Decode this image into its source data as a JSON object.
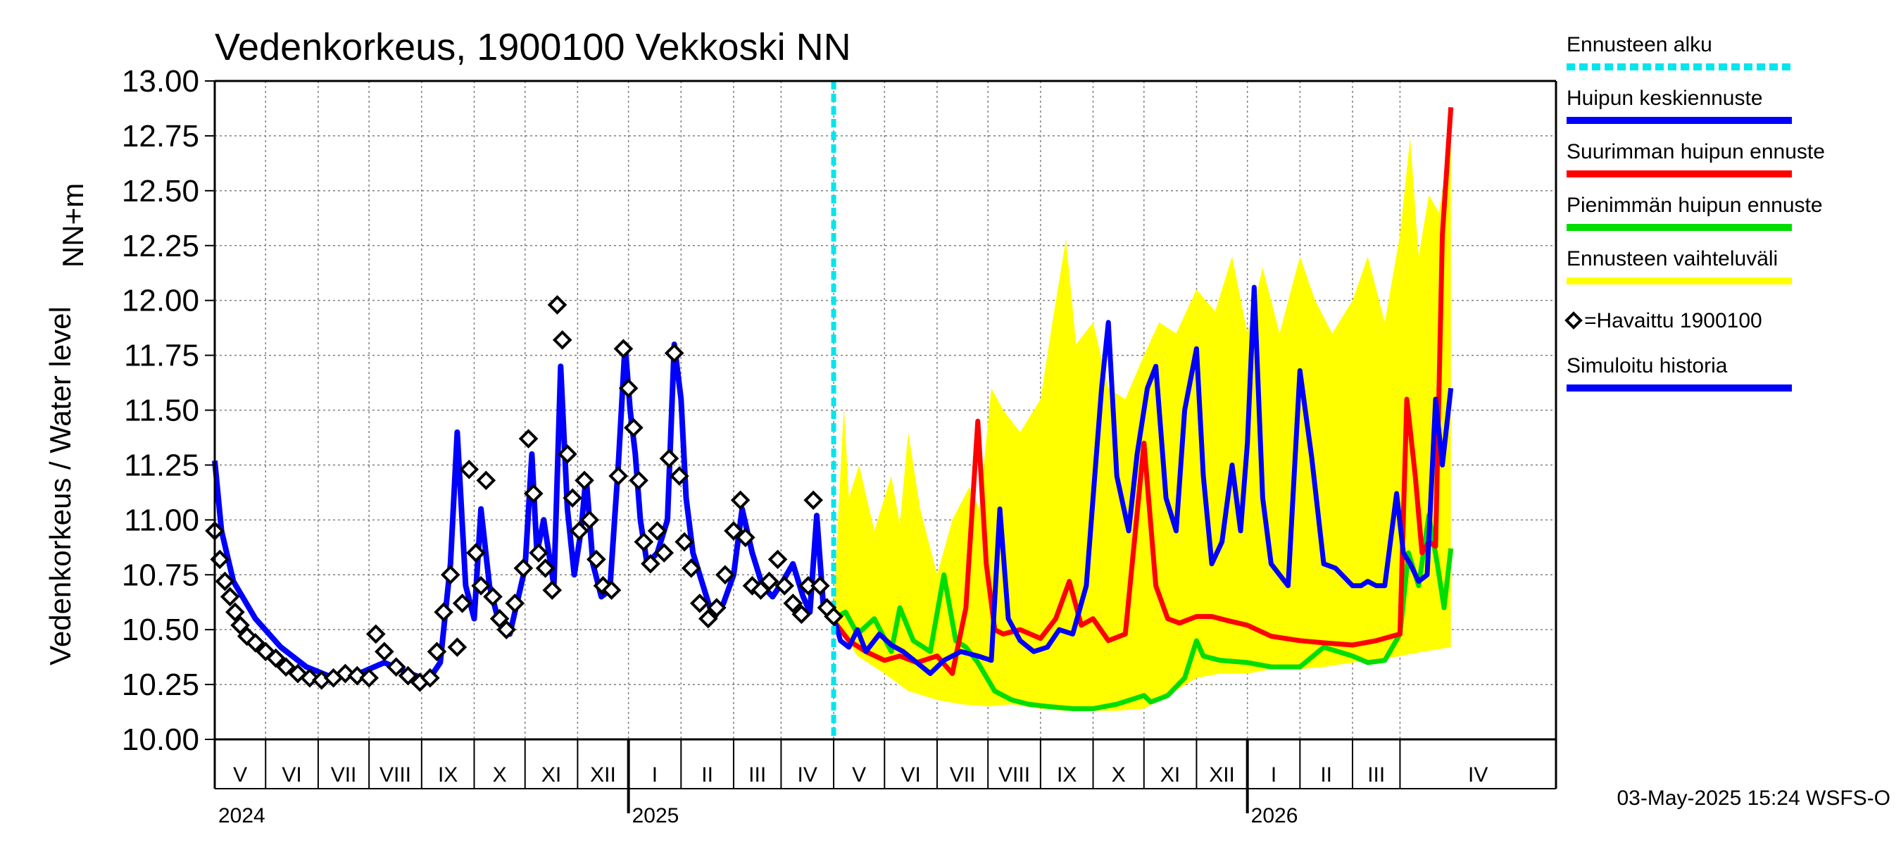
{
  "colors": {
    "forecast_start": "#00e5ee",
    "mean_forecast": "#0000ff",
    "max_forecast": "#ff0000",
    "min_forecast": "#00dd00",
    "range": "#ffff00",
    "observed": "#000000",
    "simulated": "#0000ff",
    "grid": "#7f7f7f"
  },
  "footer": "03-May-2025 15:24 WSFS-O",
  "chart_data": {
    "type": "line",
    "title": "Vedenkorkeus, 1900100 Vekkoski NN",
    "ylabel_top": "NN+m",
    "ylabel": "Vedenkorkeus / Water level",
    "ylim": [
      10.0,
      13.0
    ],
    "yticks": [
      "10.00",
      "10.25",
      "10.50",
      "10.75",
      "11.00",
      "11.25",
      "11.50",
      "11.75",
      "12.00",
      "12.25",
      "12.50",
      "12.75",
      "13.00"
    ],
    "xlim": [
      "2024-04-01",
      "2026-05-31"
    ],
    "grid": true,
    "legend_position": "right",
    "legend": [
      {
        "key": "forecast_start",
        "label": "Ennusteen alku"
      },
      {
        "key": "mean_forecast",
        "label": "Huipun keskiennuste"
      },
      {
        "key": "max_forecast",
        "label": "Suurimman huipun ennuste"
      },
      {
        "key": "min_forecast",
        "label": "Pienimmän huipun ennuste"
      },
      {
        "key": "range",
        "label": "Ennusteen vaihteluväli"
      },
      {
        "key": "observed",
        "label": "=Havaittu 1900100"
      },
      {
        "key": "simulated",
        "label": "Simuloitu historia"
      }
    ],
    "months": [
      {
        "label": "V",
        "start": "2024-04-01"
      },
      {
        "label": "VI",
        "start": "2024-05-01"
      },
      {
        "label": "VII",
        "start": "2024-06-01"
      },
      {
        "label": "VIII",
        "start": "2024-07-01"
      },
      {
        "label": "IX",
        "start": "2024-08-01"
      },
      {
        "label": "X",
        "start": "2024-09-01"
      },
      {
        "label": "XI",
        "start": "2024-10-01"
      },
      {
        "label": "XII",
        "start": "2024-11-01"
      },
      {
        "label": "I",
        "start": "2024-12-01"
      },
      {
        "label": "II",
        "start": "2025-01-01"
      },
      {
        "label": "III",
        "start": "2025-02-01"
      },
      {
        "label": "IV",
        "start": "2025-03-01"
      },
      {
        "label": "V",
        "start": "2025-04-01"
      },
      {
        "label": "VI",
        "start": "2025-05-01"
      },
      {
        "label": "VII",
        "start": "2025-06-01"
      },
      {
        "label": "VIII",
        "start": "2025-07-01"
      },
      {
        "label": "IX",
        "start": "2025-08-01"
      },
      {
        "label": "X",
        "start": "2025-09-01"
      },
      {
        "label": "XI",
        "start": "2025-10-01"
      },
      {
        "label": "XII",
        "start": "2025-11-01"
      },
      {
        "label": "I",
        "start": "2025-12-01"
      },
      {
        "label": "II",
        "start": "2026-01-01"
      },
      {
        "label": "III",
        "start": "2026-02-01"
      },
      {
        "label": "IV",
        "start": "2026-03-01"
      }
    ],
    "years": [
      {
        "label": "2024",
        "date": "2024-04-01"
      },
      {
        "label": "2025",
        "date": "2024-12-01"
      },
      {
        "label": "2026",
        "date": "2025-12-01"
      }
    ],
    "forecast_start": "2025-04-01",
    "series": [
      {
        "key": "simulated",
        "x": [
          "2024-04-01",
          "2024-04-05",
          "2024-04-12",
          "2024-04-25",
          "2024-05-10",
          "2024-05-25",
          "2024-06-10",
          "2024-06-25",
          "2024-07-10",
          "2024-07-25",
          "2024-08-05",
          "2024-08-12",
          "2024-08-18",
          "2024-08-22",
          "2024-08-27",
          "2024-09-01",
          "2024-09-05",
          "2024-09-10",
          "2024-09-15",
          "2024-09-22",
          "2024-10-01",
          "2024-10-05",
          "2024-10-08",
          "2024-10-12",
          "2024-10-18",
          "2024-10-22",
          "2024-10-26",
          "2024-10-30",
          "2024-11-03",
          "2024-11-06",
          "2024-11-10",
          "2024-11-15",
          "2024-11-20",
          "2024-11-25",
          "2024-11-29",
          "2024-12-02",
          "2024-12-05",
          "2024-12-08",
          "2024-12-12",
          "2024-12-18",
          "2024-12-24",
          "2024-12-28",
          "2025-01-01",
          "2025-01-04",
          "2025-01-08",
          "2025-01-14",
          "2025-01-20",
          "2025-01-26",
          "2025-02-01",
          "2025-02-06",
          "2025-02-12",
          "2025-02-18",
          "2025-02-24",
          "2025-03-02",
          "2025-03-08",
          "2025-03-14",
          "2025-03-18",
          "2025-03-22",
          "2025-03-26",
          "2025-04-01"
        ],
        "y": [
          11.27,
          10.95,
          10.72,
          10.55,
          10.42,
          10.33,
          10.28,
          10.3,
          10.35,
          10.3,
          10.27,
          10.35,
          10.8,
          11.4,
          10.7,
          10.55,
          11.05,
          10.7,
          10.55,
          10.48,
          10.78,
          11.3,
          10.85,
          11.0,
          10.7,
          11.7,
          11.05,
          10.75,
          10.95,
          11.2,
          10.8,
          10.65,
          10.68,
          11.25,
          11.8,
          11.5,
          11.3,
          11.0,
          10.8,
          10.85,
          11.0,
          11.8,
          11.55,
          11.1,
          10.85,
          10.7,
          10.55,
          10.62,
          10.75,
          11.05,
          10.85,
          10.7,
          10.65,
          10.72,
          10.8,
          10.65,
          10.58,
          11.02,
          10.6,
          10.55
        ]
      },
      {
        "key": "observed",
        "x": [
          "2024-04-01",
          "2024-04-04",
          "2024-04-07",
          "2024-04-10",
          "2024-04-13",
          "2024-04-16",
          "2024-04-20",
          "2024-04-25",
          "2024-05-01",
          "2024-05-07",
          "2024-05-13",
          "2024-05-20",
          "2024-05-27",
          "2024-06-03",
          "2024-06-10",
          "2024-06-17",
          "2024-06-24",
          "2024-07-01",
          "2024-07-05",
          "2024-07-10",
          "2024-07-17",
          "2024-07-24",
          "2024-07-31",
          "2024-08-06",
          "2024-08-10",
          "2024-08-14",
          "2024-08-18",
          "2024-08-22",
          "2024-08-25",
          "2024-08-29",
          "2024-09-02",
          "2024-09-05",
          "2024-09-08",
          "2024-09-12",
          "2024-09-16",
          "2024-09-20",
          "2024-09-25",
          "2024-09-30",
          "2024-10-03",
          "2024-10-06",
          "2024-10-09",
          "2024-10-13",
          "2024-10-17",
          "2024-10-20",
          "2024-10-23",
          "2024-10-26",
          "2024-10-29",
          "2024-11-02",
          "2024-11-05",
          "2024-11-08",
          "2024-11-12",
          "2024-11-16",
          "2024-11-21",
          "2024-11-25",
          "2024-11-28",
          "2024-12-01",
          "2024-12-04",
          "2024-12-07",
          "2024-12-10",
          "2024-12-14",
          "2024-12-18",
          "2024-12-22",
          "2024-12-25",
          "2024-12-28",
          "2024-12-31",
          "2025-01-03",
          "2025-01-07",
          "2025-01-12",
          "2025-01-17",
          "2025-01-22",
          "2025-01-27",
          "2025-02-01",
          "2025-02-05",
          "2025-02-08",
          "2025-02-12",
          "2025-02-17",
          "2025-02-22",
          "2025-02-27",
          "2025-03-03",
          "2025-03-08",
          "2025-03-13",
          "2025-03-17",
          "2025-03-20",
          "2025-03-24",
          "2025-03-28",
          "2025-04-01"
        ],
        "y": [
          10.95,
          10.82,
          10.72,
          10.65,
          10.58,
          10.52,
          10.47,
          10.44,
          10.4,
          10.37,
          10.33,
          10.3,
          10.28,
          10.27,
          10.28,
          10.3,
          10.29,
          10.28,
          10.48,
          10.4,
          10.33,
          10.29,
          10.26,
          10.28,
          10.4,
          10.58,
          10.75,
          10.42,
          10.62,
          11.23,
          10.85,
          10.7,
          11.18,
          10.65,
          10.55,
          10.5,
          10.62,
          10.78,
          11.37,
          11.12,
          10.85,
          10.78,
          10.68,
          11.98,
          11.82,
          11.3,
          11.1,
          10.95,
          11.18,
          11.0,
          10.82,
          10.7,
          10.68,
          11.2,
          11.78,
          11.6,
          11.42,
          11.18,
          10.9,
          10.8,
          10.95,
          10.85,
          11.28,
          11.76,
          11.2,
          10.9,
          10.78,
          10.62,
          10.55,
          10.6,
          10.75,
          10.95,
          11.09,
          10.92,
          10.7,
          10.68,
          10.72,
          10.82,
          10.7,
          10.62,
          10.57,
          10.7,
          11.09,
          10.7,
          10.6,
          10.56
        ]
      },
      {
        "key": "range_upper",
        "x": [
          "2025-04-01",
          "2025-04-07",
          "2025-04-10",
          "2025-04-16",
          "2025-04-25",
          "2025-05-05",
          "2025-05-10",
          "2025-05-15",
          "2025-05-22",
          "2025-06-01",
          "2025-06-10",
          "2025-06-20",
          "2025-06-26",
          "2025-07-03",
          "2025-07-10",
          "2025-07-20",
          "2025-08-01",
          "2025-08-08",
          "2025-08-16",
          "2025-08-22",
          "2025-09-01",
          "2025-09-10",
          "2025-09-20",
          "2025-10-01",
          "2025-10-10",
          "2025-10-20",
          "2025-11-01",
          "2025-11-12",
          "2025-11-22",
          "2025-12-01",
          "2025-12-10",
          "2025-12-20",
          "2026-01-01",
          "2026-01-10",
          "2026-01-20",
          "2026-02-01",
          "2026-02-10",
          "2026-02-20",
          "2026-03-01",
          "2026-03-07",
          "2026-03-12",
          "2026-03-18",
          "2026-03-24",
          "2026-03-31"
        ],
        "y": [
          10.6,
          11.52,
          11.1,
          11.25,
          10.95,
          11.2,
          10.98,
          11.4,
          11.05,
          10.75,
          11.0,
          11.15,
          11.05,
          11.6,
          11.5,
          11.4,
          11.55,
          11.9,
          12.28,
          11.8,
          11.9,
          11.6,
          11.55,
          11.75,
          11.9,
          11.85,
          12.05,
          11.95,
          12.2,
          11.85,
          12.15,
          11.85,
          12.2,
          12.0,
          11.85,
          12.0,
          12.2,
          11.9,
          12.3,
          12.74,
          12.2,
          12.48,
          12.4,
          12.75
        ]
      },
      {
        "key": "range_lower",
        "x": [
          "2025-04-01",
          "2025-04-15",
          "2025-05-01",
          "2025-05-15",
          "2025-06-01",
          "2025-06-15",
          "2025-07-01",
          "2025-07-15",
          "2025-08-01",
          "2025-08-15",
          "2025-09-01",
          "2025-09-15",
          "2025-10-01",
          "2025-10-15",
          "2025-11-01",
          "2025-11-15",
          "2025-12-01",
          "2025-12-15",
          "2026-01-01",
          "2026-01-15",
          "2026-02-01",
          "2026-02-15",
          "2026-03-01",
          "2026-03-15",
          "2026-03-31"
        ],
        "y": [
          10.55,
          10.38,
          10.3,
          10.22,
          10.18,
          10.16,
          10.15,
          10.16,
          10.14,
          10.13,
          10.13,
          10.13,
          10.14,
          10.2,
          10.28,
          10.3,
          10.3,
          10.32,
          10.32,
          10.33,
          10.35,
          10.36,
          10.38,
          10.4,
          10.42
        ]
      },
      {
        "key": "mean_forecast",
        "x": [
          "2025-04-01",
          "2025-04-05",
          "2025-04-10",
          "2025-04-15",
          "2025-04-20",
          "2025-04-28",
          "2025-05-05",
          "2025-05-12",
          "2025-05-20",
          "2025-05-28",
          "2025-06-05",
          "2025-06-15",
          "2025-06-25",
          "2025-07-03",
          "2025-07-08",
          "2025-07-13",
          "2025-07-20",
          "2025-07-28",
          "2025-08-05",
          "2025-08-12",
          "2025-08-20",
          "2025-08-28",
          "2025-09-03",
          "2025-09-06",
          "2025-09-10",
          "2025-09-15",
          "2025-09-22",
          "2025-09-27",
          "2025-10-03",
          "2025-10-08",
          "2025-10-14",
          "2025-10-20",
          "2025-10-25",
          "2025-11-01",
          "2025-11-05",
          "2025-11-10",
          "2025-11-16",
          "2025-11-22",
          "2025-11-27",
          "2025-12-01",
          "2025-12-05",
          "2025-12-10",
          "2025-12-15",
          "2025-12-20",
          "2025-12-25",
          "2026-01-01",
          "2026-01-08",
          "2026-01-15",
          "2026-01-22",
          "2026-02-01",
          "2026-02-06",
          "2026-02-10",
          "2026-02-15",
          "2026-02-20",
          "2026-02-27",
          "2026-03-03",
          "2026-03-07",
          "2026-03-12",
          "2026-03-17",
          "2026-03-22",
          "2026-03-26",
          "2026-03-31"
        ],
        "y": [
          10.56,
          10.45,
          10.42,
          10.5,
          10.4,
          10.48,
          10.43,
          10.4,
          10.35,
          10.3,
          10.36,
          10.4,
          10.38,
          10.36,
          11.05,
          10.55,
          10.45,
          10.4,
          10.42,
          10.5,
          10.48,
          10.7,
          11.3,
          11.6,
          11.9,
          11.2,
          10.95,
          11.3,
          11.6,
          11.7,
          11.1,
          10.95,
          11.5,
          11.78,
          11.2,
          10.8,
          10.9,
          11.25,
          10.95,
          11.35,
          12.06,
          11.1,
          10.8,
          10.75,
          10.7,
          11.68,
          11.28,
          10.8,
          10.78,
          10.7,
          10.7,
          10.72,
          10.7,
          10.7,
          11.12,
          10.85,
          10.8,
          10.72,
          10.75,
          11.55,
          11.25,
          11.6
        ]
      },
      {
        "key": "max_forecast",
        "x": [
          "2025-04-01",
          "2025-04-10",
          "2025-04-20",
          "2025-05-01",
          "2025-05-10",
          "2025-05-20",
          "2025-06-01",
          "2025-06-10",
          "2025-06-18",
          "2025-06-25",
          "2025-06-30",
          "2025-07-05",
          "2025-07-10",
          "2025-07-20",
          "2025-08-01",
          "2025-08-10",
          "2025-08-18",
          "2025-08-25",
          "2025-09-01",
          "2025-09-10",
          "2025-09-20",
          "2025-10-01",
          "2025-10-08",
          "2025-10-15",
          "2025-10-22",
          "2025-11-01",
          "2025-11-10",
          "2025-11-20",
          "2025-12-01",
          "2025-12-15",
          "2026-01-01",
          "2026-01-15",
          "2026-02-01",
          "2026-02-15",
          "2026-03-01",
          "2026-03-05",
          "2026-03-10",
          "2026-03-14",
          "2026-03-18",
          "2026-03-22",
          "2026-03-26",
          "2026-03-31"
        ],
        "y": [
          10.54,
          10.45,
          10.4,
          10.36,
          10.38,
          10.35,
          10.38,
          10.3,
          10.6,
          11.45,
          10.8,
          10.5,
          10.48,
          10.5,
          10.46,
          10.55,
          10.72,
          10.52,
          10.55,
          10.45,
          10.48,
          11.35,
          10.7,
          10.55,
          10.53,
          10.56,
          10.56,
          10.54,
          10.52,
          10.47,
          10.45,
          10.44,
          10.43,
          10.45,
          10.48,
          11.55,
          11.2,
          10.85,
          10.9,
          10.88,
          12.3,
          12.88
        ]
      },
      {
        "key": "min_forecast",
        "x": [
          "2025-04-01",
          "2025-04-08",
          "2025-04-15",
          "2025-04-25",
          "2025-05-05",
          "2025-05-10",
          "2025-05-18",
          "2025-05-28",
          "2025-06-05",
          "2025-06-12",
          "2025-06-18",
          "2025-06-25",
          "2025-07-05",
          "2025-07-15",
          "2025-07-25",
          "2025-08-05",
          "2025-08-20",
          "2025-09-01",
          "2025-09-15",
          "2025-10-01",
          "2025-10-05",
          "2025-10-15",
          "2025-10-25",
          "2025-11-01",
          "2025-11-05",
          "2025-11-15",
          "2025-12-01",
          "2025-12-15",
          "2026-01-01",
          "2026-01-15",
          "2026-02-01",
          "2026-02-10",
          "2026-02-20",
          "2026-03-01",
          "2026-03-06",
          "2026-03-12",
          "2026-03-18",
          "2026-03-23",
          "2026-03-27",
          "2026-03-31"
        ],
        "y": [
          10.55,
          10.58,
          10.48,
          10.55,
          10.4,
          10.6,
          10.45,
          10.4,
          10.75,
          10.45,
          10.42,
          10.35,
          10.22,
          10.18,
          10.16,
          10.15,
          10.14,
          10.14,
          10.16,
          10.2,
          10.17,
          10.2,
          10.28,
          10.45,
          10.38,
          10.36,
          10.35,
          10.33,
          10.33,
          10.42,
          10.38,
          10.35,
          10.36,
          10.48,
          10.85,
          10.7,
          11.02,
          10.8,
          10.6,
          10.87
        ]
      }
    ]
  }
}
